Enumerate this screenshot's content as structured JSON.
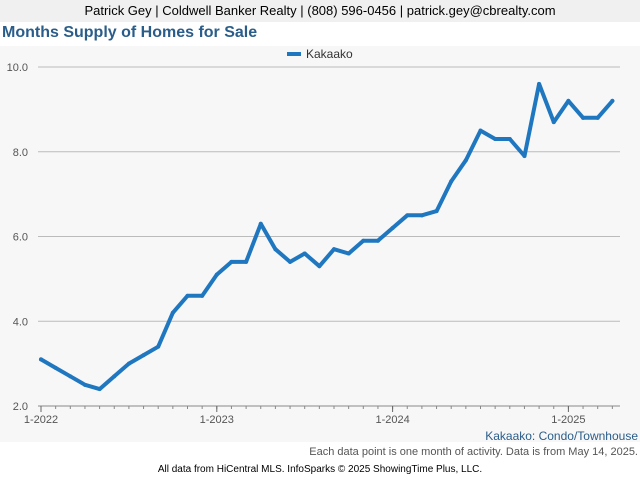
{
  "header": {
    "contact": "Patrick Gey | Coldwell Banker Realty | (808) 596-0456 | patrick.gey@cbrealty.com"
  },
  "captions": {
    "series_caption": "Kakaako: Condo/Townhouse",
    "note": "Each data point is one month of activity. Data is from May 14, 2025.",
    "credit": "All data from HiCentral MLS. InfoSparks © 2025 ShowingTime Plus, LLC."
  },
  "colors": {
    "line": "#1f77c0",
    "title": "#2a5d8a",
    "grid": "#bbbbbb"
  },
  "chart_data": {
    "type": "line",
    "title": "Months Supply of Homes for Sale",
    "xlabel": "",
    "ylabel": "",
    "ylim": [
      2.0,
      10.0
    ],
    "yticks": [
      "2.0",
      "4.0",
      "6.0",
      "8.0",
      "10.0"
    ],
    "xticks": [
      "1-2022",
      "1-2023",
      "1-2024",
      "1-2025"
    ],
    "grid": true,
    "legend_position": "top-center",
    "series": [
      {
        "name": "Kakaako",
        "x": [
          "2022-01",
          "2022-02",
          "2022-03",
          "2022-04",
          "2022-05",
          "2022-06",
          "2022-07",
          "2022-08",
          "2022-09",
          "2022-10",
          "2022-11",
          "2022-12",
          "2023-01",
          "2023-02",
          "2023-03",
          "2023-04",
          "2023-05",
          "2023-06",
          "2023-07",
          "2023-08",
          "2023-09",
          "2023-10",
          "2023-11",
          "2023-12",
          "2024-01",
          "2024-02",
          "2024-03",
          "2024-04",
          "2024-05",
          "2024-06",
          "2024-07",
          "2024-08",
          "2024-09",
          "2024-10",
          "2024-11",
          "2024-12",
          "2025-01",
          "2025-02",
          "2025-03",
          "2025-04"
        ],
        "values": [
          3.1,
          2.9,
          2.7,
          2.5,
          2.4,
          2.7,
          3.0,
          3.2,
          3.4,
          4.2,
          4.6,
          4.6,
          5.1,
          5.4,
          5.4,
          6.3,
          5.7,
          5.4,
          5.6,
          5.3,
          5.7,
          5.6,
          5.9,
          5.9,
          6.2,
          6.5,
          6.5,
          6.6,
          7.3,
          7.8,
          8.5,
          8.3,
          8.3,
          7.9,
          9.6,
          8.7,
          9.2,
          8.8,
          8.8,
          9.2
        ]
      }
    ]
  }
}
